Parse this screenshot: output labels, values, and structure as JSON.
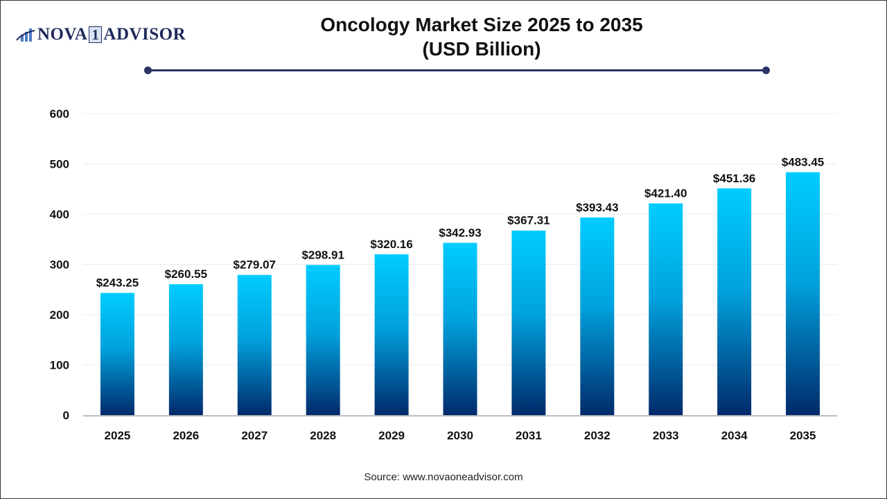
{
  "logo": {
    "text_left": "NOVA",
    "text_mid": "1",
    "text_right": "ADVISOR"
  },
  "title_line1": "Oncology Market Size 2025 to 2035",
  "title_line2": "(USD Billion)",
  "source": "Source: www.novaoneadvisor.com",
  "colors": {
    "bar_top": "#00ccff",
    "bar_bottom": "#002a6b",
    "accent": "#2b3467"
  },
  "chart_data": {
    "type": "bar",
    "title": "Oncology Market Size 2025 to 2035 (USD Billion)",
    "categories": [
      "2025",
      "2026",
      "2027",
      "2028",
      "2029",
      "2030",
      "2031",
      "2032",
      "2033",
      "2034",
      "2035"
    ],
    "values": [
      243.25,
      260.55,
      279.07,
      298.91,
      320.16,
      342.93,
      367.31,
      393.43,
      421.4,
      451.36,
      483.45
    ],
    "data_labels": [
      "$243.25",
      "$260.55",
      "$279.07",
      "$298.91",
      "$320.16",
      "$342.93",
      "$367.31",
      "$393.43",
      "$421.40",
      "$451.36",
      "$483.45"
    ],
    "ylim": [
      0,
      600
    ],
    "yticks": [
      0,
      100,
      200,
      300,
      400,
      500,
      600
    ],
    "grid": true,
    "xlabel": "",
    "ylabel": ""
  }
}
